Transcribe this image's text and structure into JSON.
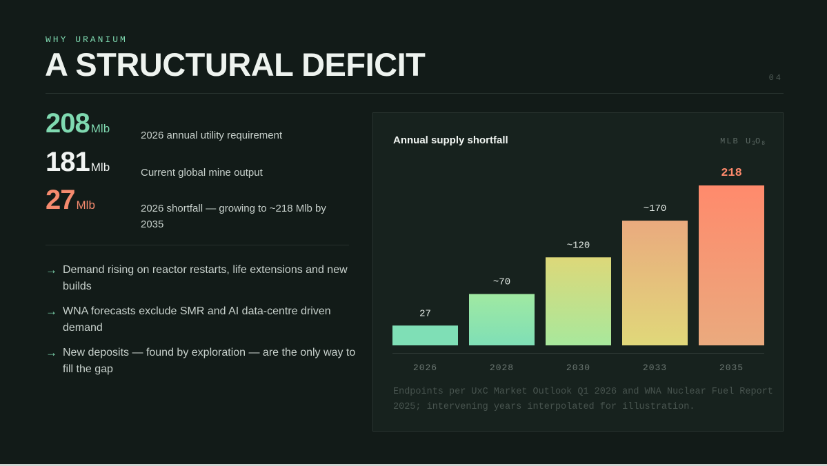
{
  "header": {
    "eyebrow": "WHY URANIUM",
    "title": "A STRUCTURAL DEFICIT",
    "page_number": "04"
  },
  "stats": [
    {
      "value": "208",
      "unit": "Mlb",
      "color": "#7fd9b0",
      "description": "2026 annual utility requirement"
    },
    {
      "value": "181",
      "unit": "Mlb",
      "color": "#f2f5f3",
      "description": "Current global mine output"
    },
    {
      "value": "27",
      "unit": "Mlb",
      "color": "#f58a6e",
      "description": "2026 shortfall — growing to ~218 Mlb by 2035"
    }
  ],
  "bullets": [
    "Demand rising on reactor restarts, life extensions and new builds",
    "WNA forecasts exclude SMR and AI data-centre driven demand",
    "New deposits — found by exploration — are the only way to fill the gap"
  ],
  "bullet_icon": "right-arrow-icon",
  "chart_panel": {
    "unit_prefix": "MLB U",
    "unit_sub1": "3",
    "unit_mid": "O",
    "unit_sub2": "8",
    "footnote": "Endpoints per UxC Market Outlook Q1 2026 and WNA Nuclear Fuel Report 2025; intervening years interpolated for illustration."
  },
  "chart_data": {
    "type": "bar",
    "title": "Annual supply shortfall",
    "unit": "MLB U3O8",
    "categories": [
      "2026",
      "2028",
      "2030",
      "2033",
      "2035"
    ],
    "values": [
      27,
      70,
      120,
      170,
      218
    ],
    "value_labels": [
      "27",
      "~70",
      "~120",
      "~170",
      "218"
    ],
    "ylim": [
      0,
      218
    ],
    "grid": false,
    "highlight_index": 4,
    "colors": {
      "bar_top": [
        "#7fdfb6",
        "#a0e9a2",
        "#ddd879",
        "#eaaa7e",
        "#ff8a6c"
      ],
      "bar_bottom": [
        "#7fdfb6",
        "#7fdfb6",
        "#a8e89c",
        "#e0d87a",
        "#eaaa7e"
      ],
      "label": "#e4ebe6",
      "highlight_label": "#ff8a6c",
      "axis": "#2f3a36",
      "tick": "#6b7772"
    }
  }
}
